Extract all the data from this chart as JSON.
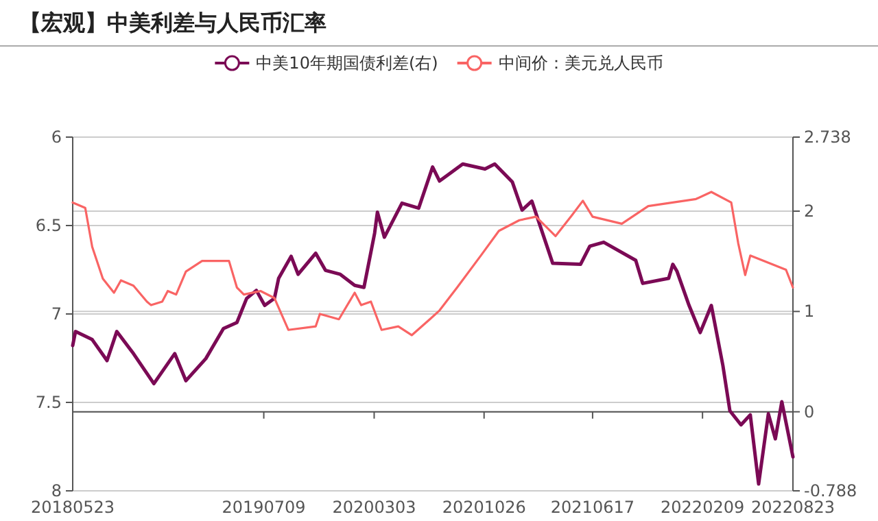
{
  "chart_data": {
    "type": "line",
    "title": "【宏观】中美利差与人民币汇率",
    "x": [
      "2018-05-23",
      "2018-06-19",
      "2018-07-04",
      "2018-07-27",
      "2018-08-20",
      "2018-09-04",
      "2018-10-01",
      "2018-10-30",
      "2018-11-08",
      "2018-12-02",
      "2018-12-14",
      "2019-01-01",
      "2019-01-22",
      "2019-02-26",
      "2019-04-25",
      "2019-05-12",
      "2019-05-27",
      "2019-07-02",
      "2019-08-01",
      "2019-08-31",
      "2019-10-29",
      "2019-11-07",
      "2019-12-18",
      "2020-01-21",
      "2020-02-04",
      "2020-02-25",
      "2020-03-19",
      "2020-04-24",
      "2020-05-23",
      "2020-07-01",
      "2020-07-22",
      "2020-08-29",
      "2020-10-19",
      "2020-11-27",
      "2021-01-10",
      "2021-02-15",
      "2021-03-29",
      "2021-05-04",
      "2021-05-27",
      "2021-06-17",
      "2021-08-19",
      "2021-10-15",
      "2022-01-26",
      "2022-02-28",
      "2022-04-12",
      "2022-04-27",
      "2022-05-12",
      "2022-05-23",
      "2022-07-01",
      "2022-08-08",
      "2022-08-23"
    ],
    "series": [
      {
        "name": "中美10年期国债利差(右)",
        "color": "#7b0a55",
        "axis": "y2",
        "x": [
          "2018-05-23",
          "2018-05-29",
          "2018-07-04",
          "2018-08-05",
          "2018-08-26",
          "2018-10-01",
          "2018-11-14",
          "2018-12-29",
          "2019-01-22",
          "2019-03-06",
          "2019-04-13",
          "2019-05-12",
          "2019-06-02",
          "2019-06-23",
          "2019-07-11",
          "2019-08-01",
          "2019-08-10",
          "2019-09-06",
          "2019-09-21",
          "2019-10-29",
          "2019-11-19",
          "2019-12-21",
          "2020-01-21",
          "2020-02-10",
          "2020-03-04",
          "2020-03-10",
          "2020-03-25",
          "2020-05-02",
          "2020-06-07",
          "2020-07-07",
          "2020-07-22",
          "2020-09-10",
          "2020-10-28",
          "2020-11-18",
          "2020-12-26",
          "2021-01-16",
          "2021-02-06",
          "2021-03-23",
          "2021-05-22",
          "2021-06-11",
          "2021-07-11",
          "2021-09-18",
          "2021-10-03",
          "2021-11-28",
          "2021-12-07",
          "2021-12-16",
          "2022-01-11",
          "2022-02-04",
          "2022-02-28",
          "2022-03-25",
          "2022-04-09",
          "2022-05-03",
          "2022-05-23",
          "2022-06-10",
          "2022-07-01",
          "2022-07-16",
          "2022-07-30",
          "2022-08-23"
        ],
        "values": [
          0.66,
          0.8,
          0.72,
          0.51,
          0.8,
          0.58,
          0.28,
          0.58,
          0.31,
          0.53,
          0.83,
          0.89,
          1.13,
          1.21,
          1.06,
          1.13,
          1.33,
          1.55,
          1.37,
          1.58,
          1.41,
          1.37,
          1.26,
          1.24,
          1.78,
          1.99,
          1.74,
          2.08,
          2.03,
          2.44,
          2.3,
          2.47,
          2.42,
          2.47,
          2.29,
          2.01,
          2.1,
          1.48,
          1.47,
          1.65,
          1.69,
          1.51,
          1.28,
          1.33,
          1.47,
          1.4,
          1.06,
          0.79,
          1.06,
          0.46,
          0.01,
          -0.13,
          -0.03,
          -0.72,
          -0.02,
          -0.27,
          0.1,
          -0.45
        ]
      },
      {
        "name": "中间价：美元兑人民币",
        "color": "#f96464",
        "values": [
          6.37,
          6.4,
          6.62,
          6.8,
          6.88,
          6.81,
          6.84,
          6.93,
          6.95,
          6.93,
          6.87,
          6.89,
          6.76,
          6.7,
          6.7,
          6.85,
          6.89,
          6.87,
          6.91,
          7.09,
          7.07,
          7.0,
          7.03,
          6.88,
          6.95,
          6.93,
          7.09,
          7.07,
          7.12,
          7.03,
          6.98,
          6.85,
          6.67,
          6.53,
          6.47,
          6.45,
          6.56,
          6.44,
          6.36,
          6.45,
          6.49,
          6.39,
          6.35,
          6.31,
          6.37,
          6.6,
          6.78,
          6.67,
          6.71,
          6.75,
          6.85
        ]
      }
    ],
    "xlim": [
      "2018-05-23",
      "2022-08-23"
    ],
    "xticks": [
      {
        "value": "2018-05-23",
        "label": "20180523"
      },
      {
        "value": "2019-07-09",
        "label": "20190709"
      },
      {
        "value": "2020-03-03",
        "label": "20200303"
      },
      {
        "value": "2020-10-26",
        "label": "20201026"
      },
      {
        "value": "2021-06-17",
        "label": "20210617"
      },
      {
        "value": "2022-02-09",
        "label": "20220209"
      },
      {
        "value": "2022-08-23",
        "label": "20220823"
      }
    ],
    "ylim": [
      8,
      6
    ],
    "yticks": [
      6,
      6.5,
      7,
      7.5,
      8
    ],
    "y2lim": [
      -0.788,
      2.738
    ],
    "y2ticks": [
      -0.788,
      0,
      1,
      2,
      2.738
    ],
    "grid": "y",
    "legend": "top"
  }
}
